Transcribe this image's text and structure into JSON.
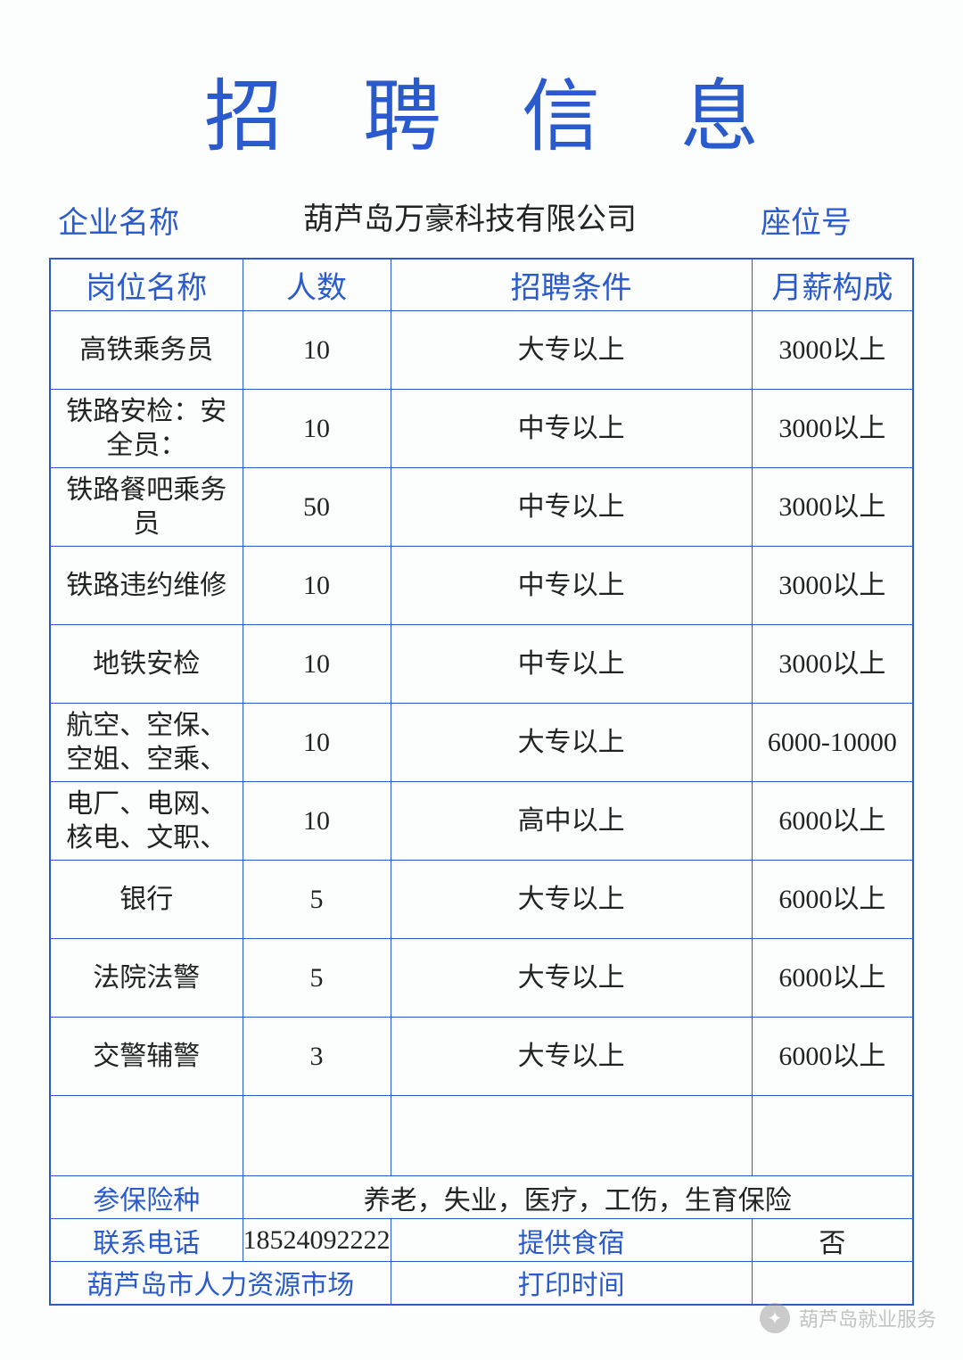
{
  "title": "招聘信息",
  "header": {
    "company_label": "企业名称",
    "company_name": "葫芦岛万豪科技有限公司",
    "seat_label": "座位号"
  },
  "table": {
    "columns": {
      "position": "岗位名称",
      "count": "人数",
      "condition": "招聘条件",
      "salary": "月薪构成"
    },
    "rows": [
      {
        "position": "高铁乘务员",
        "count": "10",
        "condition": "大专以上",
        "salary": "3000以上"
      },
      {
        "position": "铁路安检：安全员：",
        "count": "10",
        "condition": "中专以上",
        "salary": "3000以上"
      },
      {
        "position": "铁路餐吧乘务员",
        "count": "50",
        "condition": "中专以上",
        "salary": "3000以上"
      },
      {
        "position": "铁路违约维修",
        "count": "10",
        "condition": "中专以上",
        "salary": "3000以上"
      },
      {
        "position": "地铁安检",
        "count": "10",
        "condition": "中专以上",
        "salary": "3000以上"
      },
      {
        "position": "航空、空保、空姐、空乘、",
        "count": "10",
        "condition": "大专以上",
        "salary": "6000-10000"
      },
      {
        "position": "电厂、电网、核电、文职、",
        "count": "10",
        "condition": "高中以上",
        "salary": "6000以上"
      },
      {
        "position": "银行",
        "count": "5",
        "condition": "大专以上",
        "salary": "6000以上"
      },
      {
        "position": "法院法警",
        "count": "5",
        "condition": "大专以上",
        "salary": "6000以上"
      },
      {
        "position": "交警辅警",
        "count": "3",
        "condition": "大专以上",
        "salary": "6000以上"
      }
    ]
  },
  "footer": {
    "insurance_label": "参保险种",
    "insurance_value": "养老，失业，医疗，工伤，生育保险",
    "phone_label": "联系电话",
    "phone_value": "18524092222",
    "lodging_label": "提供食宿",
    "lodging_value": "否",
    "market_label": "葫芦岛市人力资源市场",
    "print_label": "打印时间"
  },
  "watermark": "葫芦岛就业服务"
}
